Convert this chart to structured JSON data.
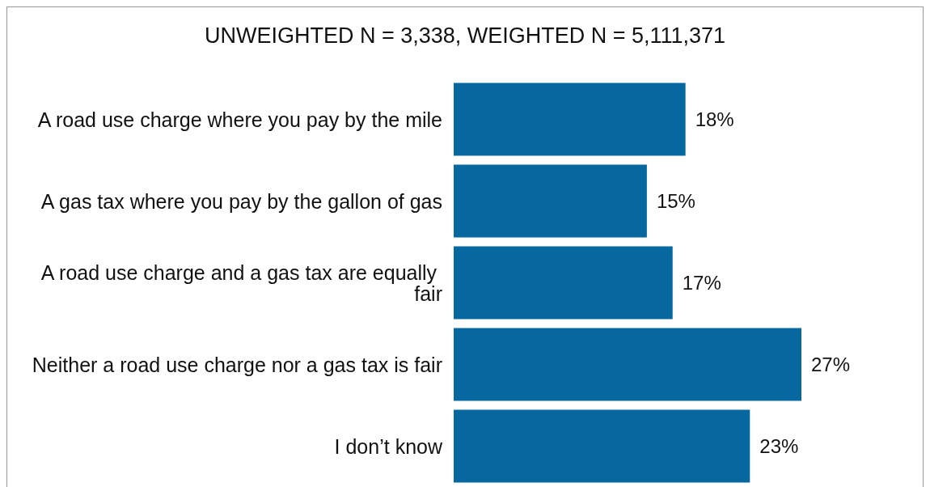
{
  "chart_data": {
    "type": "bar",
    "orientation": "horizontal",
    "title": "UNWEIGHTED N = 3,338, WEIGHTED N = 5,111,371",
    "categories": [
      "A road use charge where you pay by the mile",
      "A gas tax where you pay by the gallon of gas",
      "A road use charge and a gas tax are equally fair",
      "Neither a road use charge nor a gas tax is fair",
      "I don’t know"
    ],
    "values": [
      18,
      15,
      17,
      27,
      23
    ],
    "value_labels": [
      "18%",
      "15%",
      "17%",
      "27%",
      "23%"
    ],
    "color": "#07689f"
  }
}
